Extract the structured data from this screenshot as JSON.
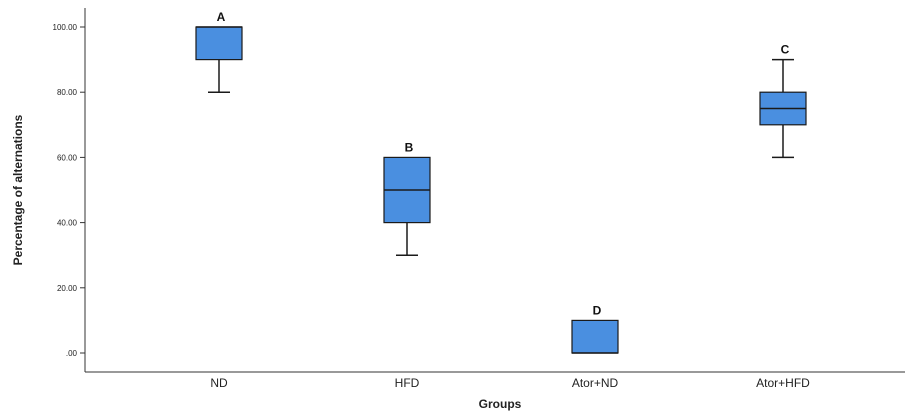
{
  "chart_data": {
    "type": "boxplot",
    "xlabel": "Groups",
    "ylabel": "Percentage of alternations",
    "ylim": [
      0,
      100
    ],
    "yticks": [
      0,
      20,
      40,
      60,
      80,
      100
    ],
    "ytick_labels": [
      ".00",
      "20.00",
      "40.00",
      "60.00",
      "80.00",
      "100.00"
    ],
    "grid": false,
    "categories": [
      "ND",
      "HFD",
      "Ator+ND",
      "Ator+HFD"
    ],
    "boxes": [
      {
        "category": "ND",
        "whisker_low": 80,
        "q1": 90,
        "median": 100,
        "q3": 100,
        "whisker_high": 100,
        "letter": "A"
      },
      {
        "category": "HFD",
        "whisker_low": 30,
        "q1": 40,
        "median": 50,
        "q3": 60,
        "whisker_high": 60,
        "letter": "B"
      },
      {
        "category": "Ator+ND",
        "whisker_low": 0,
        "q1": 0,
        "median": 0,
        "q3": 10,
        "whisker_high": 10,
        "letter": "D"
      },
      {
        "category": "Ator+HFD",
        "whisker_low": 60,
        "q1": 70,
        "median": 75,
        "q3": 80,
        "whisker_high": 90,
        "letter": "C"
      }
    ],
    "colors": {
      "box_fill": "#4a8fe0",
      "box_stroke": "#1a1a1a",
      "axis": "#333333"
    }
  }
}
